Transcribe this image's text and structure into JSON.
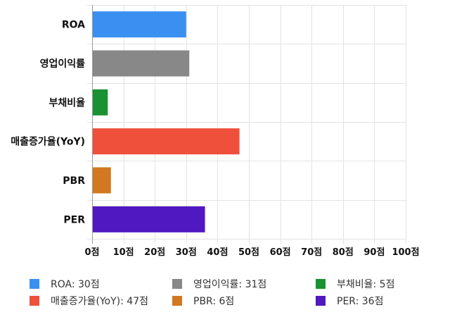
{
  "chart_data": {
    "type": "bar",
    "orientation": "horizontal",
    "categories": [
      "ROA",
      "영업이익률",
      "부채비율",
      "매출증가율(YoY)",
      "PBR",
      "PER"
    ],
    "values": [
      30,
      31,
      5,
      47,
      6,
      36
    ],
    "colors": [
      "#3b8ff0",
      "#888888",
      "#1a9133",
      "#ee503b",
      "#d17821",
      "#5018c0"
    ],
    "xlim": [
      0,
      100
    ],
    "x_ticks": [
      0,
      10,
      20,
      30,
      40,
      50,
      60,
      70,
      80,
      90,
      100
    ],
    "x_tick_labels": [
      "0점",
      "10점",
      "20점",
      "30점",
      "40점",
      "50점",
      "60점",
      "70점",
      "80점",
      "90점",
      "100점"
    ],
    "grid": true,
    "legend_placement": "bottom",
    "legend": [
      {
        "label": "ROA: 30점",
        "color": "#3b8ff0"
      },
      {
        "label": "영업이익률: 31점",
        "color": "#888888"
      },
      {
        "label": "부채비율: 5점",
        "color": "#1a9133"
      },
      {
        "label": "매출증가율(YoY): 47점",
        "color": "#ee503b"
      },
      {
        "label": "PBR: 6점",
        "color": "#d17821"
      },
      {
        "label": "PER: 36점",
        "color": "#5018c0"
      }
    ]
  }
}
